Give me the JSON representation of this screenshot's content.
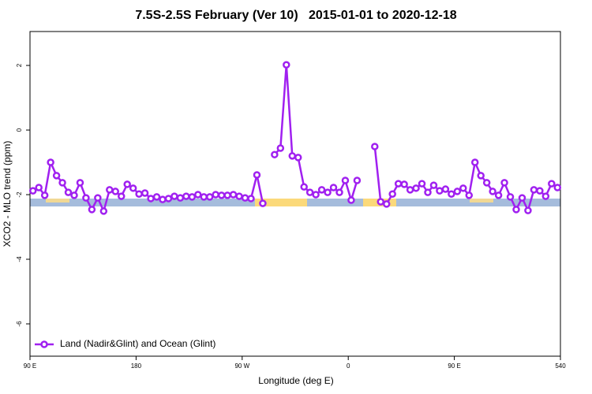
{
  "chart_data": {
    "type": "line",
    "title": "7.5S-2.5S February (Ver 10)   2015-01-01 to 2020-12-18",
    "x_label": "Longitude (deg E)",
    "y_label": "XCO2 - MLO trend (ppm)",
    "x": [
      92.5,
      97.5,
      102.5,
      107.5,
      112.5,
      117.5,
      122.5,
      127.5,
      132.5,
      137.5,
      142.5,
      147.5,
      152.5,
      157.5,
      162.5,
      167.5,
      172.5,
      177.5,
      182.5,
      187.5,
      192.5,
      197.5,
      202.5,
      207.5,
      212.5,
      217.5,
      222.5,
      227.5,
      232.5,
      237.5,
      242.5,
      247.5,
      252.5,
      257.5,
      262.5,
      267.5,
      272.5,
      277.5,
      282.5,
      287.5,
      292.5,
      297.5,
      302.5,
      307.5,
      312.5,
      317.5,
      322.5,
      327.5,
      332.5,
      337.5,
      342.5,
      347.5,
      352.5,
      357.5,
      362.5,
      367.5,
      372.5,
      377.5,
      382.5,
      387.5,
      392.5,
      397.5,
      402.5,
      407.5,
      412.5,
      417.5,
      422.5,
      427.5,
      432.5,
      437.5,
      442.5,
      447.5,
      452.5,
      457.5,
      462.5,
      467.5,
      472.5,
      477.5,
      482.5,
      487.5,
      492.5,
      497.5,
      502.5,
      507.5,
      512.5,
      517.5,
      522.5,
      527.5,
      532.5,
      537.5
    ],
    "series": [
      {
        "name": "Land (Nadir&Glint) and Ocean (Glint)",
        "color": "#a020f0",
        "values": [
          -1.88,
          -1.78,
          -2.02,
          -1.0,
          -1.41,
          -1.63,
          -1.93,
          -2.02,
          -1.63,
          -2.1,
          -2.46,
          -2.1,
          -2.51,
          -1.85,
          -1.9,
          -2.05,
          -1.68,
          -1.8,
          -1.98,
          -1.95,
          -2.12,
          -2.07,
          -2.15,
          -2.12,
          -2.05,
          -2.1,
          -2.05,
          -2.07,
          -2.0,
          -2.07,
          -2.07,
          -2.0,
          -2.02,
          -2.02,
          -2.0,
          -2.05,
          -2.1,
          -2.12,
          -1.39,
          -2.27,
          null,
          -0.76,
          -0.56,
          2.02,
          -0.8,
          -0.85,
          -1.76,
          -1.93,
          -2.0,
          -1.85,
          -1.93,
          -1.78,
          -1.93,
          -1.56,
          -2.17,
          -1.56,
          null,
          null,
          -0.51,
          -2.22,
          -2.29,
          -1.98,
          -1.66,
          -1.68,
          -1.85,
          -1.8,
          -1.66,
          -1.93,
          -1.71,
          -1.88,
          -1.83,
          -1.98,
          -1.9,
          -1.8,
          -2.02,
          -1.0,
          -1.41,
          -1.63,
          -1.9,
          -2.02,
          -1.63,
          -2.07,
          -2.46,
          -2.1,
          -2.49,
          -1.85,
          -1.88,
          -2.05,
          -1.66,
          -1.78
        ]
      }
    ],
    "xlim": [
      90,
      540
    ],
    "ylim": [
      -7,
      3.05
    ],
    "xticks": [
      {
        "value": 90,
        "label": "90 E"
      },
      180,
      {
        "value": 270,
        "label": "90 W"
      },
      {
        "value": 360,
        "label": "0"
      },
      {
        "value": 450,
        "label": "90 E"
      },
      540
    ],
    "yticks": [
      2,
      0,
      -2,
      -4,
      -6
    ],
    "legend": "bottom-left"
  }
}
